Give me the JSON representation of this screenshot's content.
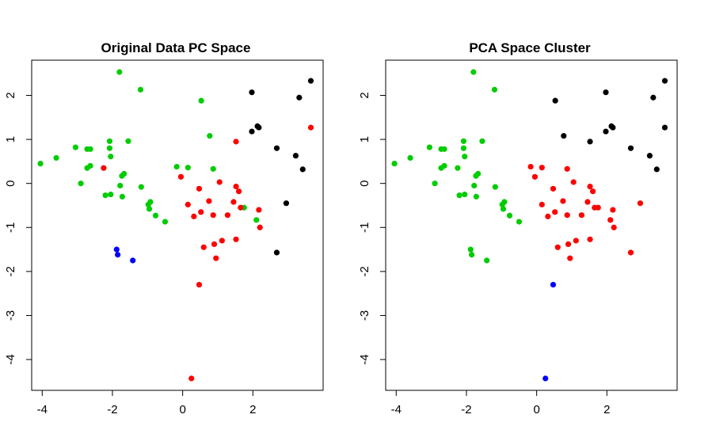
{
  "chart_data": [
    {
      "type": "scatter",
      "title": "Original Data PC Space",
      "xlabel": "",
      "ylabel": "",
      "xlim": [
        -4.3,
        4.0
      ],
      "ylim": [
        -4.7,
        2.8
      ],
      "xticks": [
        -4,
        -2,
        0,
        2
      ],
      "yticks": [
        2,
        1,
        0,
        -1,
        -2,
        -3,
        -4
      ],
      "grid": false,
      "colors": {
        "green": "#00cd00",
        "red": "#ff0000",
        "black": "#000000",
        "blue": "#0000ff"
      },
      "points": [
        {
          "x": -4.05,
          "y": 0.45,
          "color": "green"
        },
        {
          "x": -3.6,
          "y": 0.58,
          "color": "green"
        },
        {
          "x": -3.05,
          "y": 0.82,
          "color": "green"
        },
        {
          "x": -2.9,
          "y": 0.0,
          "color": "green"
        },
        {
          "x": -2.72,
          "y": 0.78,
          "color": "green"
        },
        {
          "x": -2.63,
          "y": 0.78,
          "color": "green"
        },
        {
          "x": -2.72,
          "y": 0.35,
          "color": "green"
        },
        {
          "x": -2.63,
          "y": 0.4,
          "color": "green"
        },
        {
          "x": -2.2,
          "y": -0.27,
          "color": "green"
        },
        {
          "x": -2.08,
          "y": 0.96,
          "color": "green"
        },
        {
          "x": -2.08,
          "y": 0.8,
          "color": "green"
        },
        {
          "x": -2.05,
          "y": 0.61,
          "color": "green"
        },
        {
          "x": -2.05,
          "y": -0.25,
          "color": "green"
        },
        {
          "x": -1.8,
          "y": 2.53,
          "color": "green"
        },
        {
          "x": -1.78,
          "y": -0.05,
          "color": "green"
        },
        {
          "x": -1.73,
          "y": 0.17,
          "color": "green"
        },
        {
          "x": -1.67,
          "y": 0.22,
          "color": "green"
        },
        {
          "x": -1.72,
          "y": -0.3,
          "color": "green"
        },
        {
          "x": -1.55,
          "y": 0.96,
          "color": "green"
        },
        {
          "x": -1.2,
          "y": 2.13,
          "color": "green"
        },
        {
          "x": -1.18,
          "y": -0.08,
          "color": "green"
        },
        {
          "x": -0.98,
          "y": -0.48,
          "color": "green"
        },
        {
          "x": -0.92,
          "y": -0.42,
          "color": "green"
        },
        {
          "x": -0.95,
          "y": -0.58,
          "color": "green"
        },
        {
          "x": -0.77,
          "y": -0.73,
          "color": "green"
        },
        {
          "x": -0.5,
          "y": -0.87,
          "color": "green"
        },
        {
          "x": -0.17,
          "y": 0.38,
          "color": "green"
        },
        {
          "x": 0.15,
          "y": 0.36,
          "color": "green"
        },
        {
          "x": 0.53,
          "y": 1.88,
          "color": "green"
        },
        {
          "x": 0.77,
          "y": 1.08,
          "color": "green"
        },
        {
          "x": 0.87,
          "y": 0.33,
          "color": "green"
        },
        {
          "x": 1.75,
          "y": -0.55,
          "color": "green"
        },
        {
          "x": 2.1,
          "y": -0.83,
          "color": "green"
        },
        {
          "x": -2.25,
          "y": 0.35,
          "color": "red"
        },
        {
          "x": -0.05,
          "y": 0.15,
          "color": "red"
        },
        {
          "x": 0.15,
          "y": -0.48,
          "color": "red"
        },
        {
          "x": 0.32,
          "y": -0.75,
          "color": "red"
        },
        {
          "x": 0.47,
          "y": -0.12,
          "color": "red"
        },
        {
          "x": 0.52,
          "y": -0.65,
          "color": "red"
        },
        {
          "x": 0.6,
          "y": -1.45,
          "color": "red"
        },
        {
          "x": 0.47,
          "y": -2.3,
          "color": "red"
        },
        {
          "x": 0.25,
          "y": -4.43,
          "color": "red"
        },
        {
          "x": 0.75,
          "y": -0.4,
          "color": "red"
        },
        {
          "x": 0.87,
          "y": -0.72,
          "color": "red"
        },
        {
          "x": 0.9,
          "y": -1.38,
          "color": "red"
        },
        {
          "x": 0.95,
          "y": -1.7,
          "color": "red"
        },
        {
          "x": 1.05,
          "y": 0.03,
          "color": "red"
        },
        {
          "x": 1.12,
          "y": -1.3,
          "color": "red"
        },
        {
          "x": 1.28,
          "y": -0.72,
          "color": "red"
        },
        {
          "x": 1.45,
          "y": -0.42,
          "color": "red"
        },
        {
          "x": 1.52,
          "y": -0.07,
          "color": "red"
        },
        {
          "x": 1.6,
          "y": -0.18,
          "color": "red"
        },
        {
          "x": 1.52,
          "y": 0.95,
          "color": "red"
        },
        {
          "x": 1.52,
          "y": -1.27,
          "color": "red"
        },
        {
          "x": 1.65,
          "y": -0.55,
          "color": "red"
        },
        {
          "x": 2.17,
          "y": -0.6,
          "color": "red"
        },
        {
          "x": 2.2,
          "y": -1.0,
          "color": "red"
        },
        {
          "x": 3.65,
          "y": 1.27,
          "color": "red"
        },
        {
          "x": 1.97,
          "y": 2.07,
          "color": "black"
        },
        {
          "x": 1.97,
          "y": 1.18,
          "color": "black"
        },
        {
          "x": 2.13,
          "y": 1.3,
          "color": "black"
        },
        {
          "x": 2.17,
          "y": 1.27,
          "color": "black"
        },
        {
          "x": 2.68,
          "y": 0.8,
          "color": "black"
        },
        {
          "x": 2.68,
          "y": -1.57,
          "color": "black"
        },
        {
          "x": 2.95,
          "y": -0.45,
          "color": "black"
        },
        {
          "x": 3.22,
          "y": 0.63,
          "color": "black"
        },
        {
          "x": 3.32,
          "y": 1.95,
          "color": "black"
        },
        {
          "x": 3.42,
          "y": 0.32,
          "color": "black"
        },
        {
          "x": 3.65,
          "y": 2.33,
          "color": "black"
        },
        {
          "x": -1.88,
          "y": -1.5,
          "color": "blue"
        },
        {
          "x": -1.85,
          "y": -1.62,
          "color": "blue"
        },
        {
          "x": -1.42,
          "y": -1.75,
          "color": "blue"
        }
      ]
    },
    {
      "type": "scatter",
      "title": "PCA Space Cluster",
      "xlabel": "",
      "ylabel": "",
      "xlim": [
        -4.3,
        4.0
      ],
      "ylim": [
        -4.7,
        2.8
      ],
      "xticks": [
        -4,
        -2,
        0,
        2
      ],
      "yticks": [
        2,
        1,
        0,
        -1,
        -2,
        -3,
        -4
      ],
      "grid": false,
      "colors": {
        "green": "#00cd00",
        "red": "#ff0000",
        "black": "#000000",
        "blue": "#0000ff"
      },
      "points": [
        {
          "x": -4.05,
          "y": 0.45,
          "color": "green"
        },
        {
          "x": -3.6,
          "y": 0.58,
          "color": "green"
        },
        {
          "x": -3.05,
          "y": 0.82,
          "color": "green"
        },
        {
          "x": -2.9,
          "y": 0.0,
          "color": "green"
        },
        {
          "x": -2.72,
          "y": 0.78,
          "color": "green"
        },
        {
          "x": -2.63,
          "y": 0.78,
          "color": "green"
        },
        {
          "x": -2.72,
          "y": 0.35,
          "color": "green"
        },
        {
          "x": -2.63,
          "y": 0.4,
          "color": "green"
        },
        {
          "x": -2.25,
          "y": 0.35,
          "color": "green"
        },
        {
          "x": -2.2,
          "y": -0.27,
          "color": "green"
        },
        {
          "x": -2.08,
          "y": 0.96,
          "color": "green"
        },
        {
          "x": -2.08,
          "y": 0.8,
          "color": "green"
        },
        {
          "x": -2.05,
          "y": 0.61,
          "color": "green"
        },
        {
          "x": -2.05,
          "y": -0.25,
          "color": "green"
        },
        {
          "x": -1.8,
          "y": 2.53,
          "color": "green"
        },
        {
          "x": -1.78,
          "y": -0.05,
          "color": "green"
        },
        {
          "x": -1.73,
          "y": 0.17,
          "color": "green"
        },
        {
          "x": -1.67,
          "y": 0.22,
          "color": "green"
        },
        {
          "x": -1.72,
          "y": -0.3,
          "color": "green"
        },
        {
          "x": -1.55,
          "y": 0.96,
          "color": "green"
        },
        {
          "x": -1.2,
          "y": 2.13,
          "color": "green"
        },
        {
          "x": -1.18,
          "y": -0.08,
          "color": "green"
        },
        {
          "x": -0.98,
          "y": -0.48,
          "color": "green"
        },
        {
          "x": -0.92,
          "y": -0.42,
          "color": "green"
        },
        {
          "x": -0.95,
          "y": -0.58,
          "color": "green"
        },
        {
          "x": -0.77,
          "y": -0.73,
          "color": "green"
        },
        {
          "x": -0.5,
          "y": -0.87,
          "color": "green"
        },
        {
          "x": -1.88,
          "y": -1.5,
          "color": "green"
        },
        {
          "x": -1.85,
          "y": -1.62,
          "color": "green"
        },
        {
          "x": -1.42,
          "y": -1.75,
          "color": "green"
        },
        {
          "x": -0.17,
          "y": 0.38,
          "color": "red"
        },
        {
          "x": -0.05,
          "y": 0.15,
          "color": "red"
        },
        {
          "x": 0.15,
          "y": 0.36,
          "color": "red"
        },
        {
          "x": 0.15,
          "y": -0.48,
          "color": "red"
        },
        {
          "x": 0.32,
          "y": -0.75,
          "color": "red"
        },
        {
          "x": 0.47,
          "y": -0.12,
          "color": "red"
        },
        {
          "x": 0.52,
          "y": -0.65,
          "color": "red"
        },
        {
          "x": 0.6,
          "y": -1.45,
          "color": "red"
        },
        {
          "x": 0.75,
          "y": -0.4,
          "color": "red"
        },
        {
          "x": 0.87,
          "y": 0.33,
          "color": "red"
        },
        {
          "x": 0.87,
          "y": -0.72,
          "color": "red"
        },
        {
          "x": 0.9,
          "y": -1.38,
          "color": "red"
        },
        {
          "x": 0.95,
          "y": -1.7,
          "color": "red"
        },
        {
          "x": 1.05,
          "y": 0.03,
          "color": "red"
        },
        {
          "x": 1.12,
          "y": -1.3,
          "color": "red"
        },
        {
          "x": 1.28,
          "y": -0.72,
          "color": "red"
        },
        {
          "x": 1.45,
          "y": -0.42,
          "color": "red"
        },
        {
          "x": 1.52,
          "y": -0.07,
          "color": "red"
        },
        {
          "x": 1.6,
          "y": -0.18,
          "color": "red"
        },
        {
          "x": 1.52,
          "y": -1.27,
          "color": "red"
        },
        {
          "x": 1.65,
          "y": -0.55,
          "color": "red"
        },
        {
          "x": 1.75,
          "y": -0.55,
          "color": "red"
        },
        {
          "x": 2.1,
          "y": -0.83,
          "color": "red"
        },
        {
          "x": 2.17,
          "y": -0.6,
          "color": "red"
        },
        {
          "x": 2.2,
          "y": -1.0,
          "color": "red"
        },
        {
          "x": 2.68,
          "y": -1.57,
          "color": "red"
        },
        {
          "x": 2.95,
          "y": -0.45,
          "color": "red"
        },
        {
          "x": 0.53,
          "y": 1.88,
          "color": "black"
        },
        {
          "x": 0.77,
          "y": 1.08,
          "color": "black"
        },
        {
          "x": 1.52,
          "y": 0.95,
          "color": "black"
        },
        {
          "x": 1.97,
          "y": 2.07,
          "color": "black"
        },
        {
          "x": 1.97,
          "y": 1.18,
          "color": "black"
        },
        {
          "x": 2.13,
          "y": 1.3,
          "color": "black"
        },
        {
          "x": 2.17,
          "y": 1.27,
          "color": "black"
        },
        {
          "x": 2.68,
          "y": 0.8,
          "color": "black"
        },
        {
          "x": 3.22,
          "y": 0.63,
          "color": "black"
        },
        {
          "x": 3.32,
          "y": 1.95,
          "color": "black"
        },
        {
          "x": 3.42,
          "y": 0.32,
          "color": "black"
        },
        {
          "x": 3.65,
          "y": 2.33,
          "color": "black"
        },
        {
          "x": 3.65,
          "y": 1.27,
          "color": "black"
        },
        {
          "x": 0.47,
          "y": -2.3,
          "color": "blue"
        },
        {
          "x": 0.25,
          "y": -4.43,
          "color": "blue"
        }
      ]
    }
  ]
}
